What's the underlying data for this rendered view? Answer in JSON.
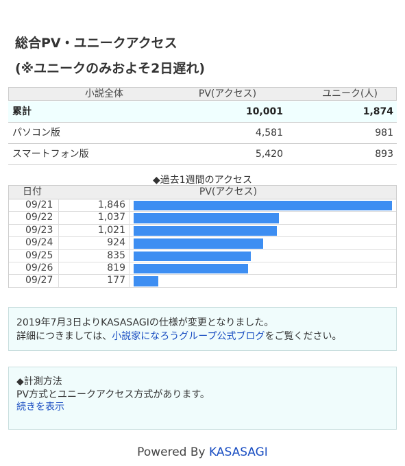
{
  "title": [
    "総合PV・ユニークアクセス",
    "(※ユニークのみおよそ2日遅れ)"
  ],
  "summary": {
    "header": [
      "小説全体",
      "PV(アクセス)",
      "ユニーク(人)"
    ],
    "rows": [
      [
        "累計",
        "10,001",
        "1,874"
      ],
      [
        "パソコン版",
        "4,581",
        "981"
      ],
      [
        "スマートフォン版",
        "5,420",
        "893"
      ]
    ]
  },
  "weekly": {
    "title": "◆過去1週間のアクセス",
    "header": [
      "日付",
      "PV(アクセス)"
    ],
    "rows": [
      {
        "date": "09/21",
        "value": 1846,
        "label": "1,846"
      },
      {
        "date": "09/22",
        "value": 1037,
        "label": "1,037"
      },
      {
        "date": "09/23",
        "value": 1021,
        "label": "1,021"
      },
      {
        "date": "09/24",
        "value": 924,
        "label": "924"
      },
      {
        "date": "09/25",
        "value": 835,
        "label": "835"
      },
      {
        "date": "09/26",
        "value": 819,
        "label": "819"
      },
      {
        "date": "09/27",
        "value": 177,
        "label": "177"
      }
    ]
  },
  "notice": {
    "line1": "2019年7月3日よりKASASAGIの仕様が変更となりました。",
    "line2_before": "詳細につきましては、",
    "link": "小説家になろうグループ公式ブログ",
    "line2_after": "をご覧ください。"
  },
  "method": {
    "title": "◆計測方法",
    "text": "PV方式とユニークアクセス方式があります。",
    "link": "続きを表示"
  },
  "footer": {
    "prefix": "Powered By",
    "link": "KASASAGI"
  }
}
